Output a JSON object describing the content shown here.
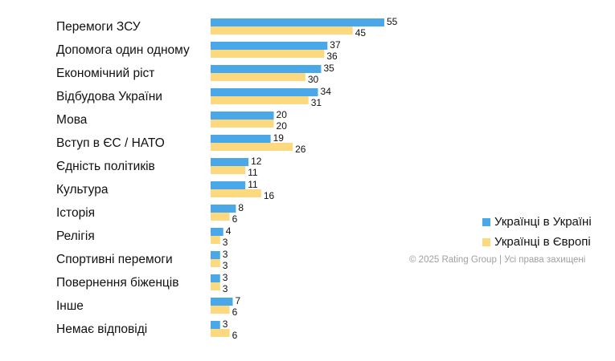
{
  "chart_data": {
    "type": "bar",
    "orientation": "horizontal",
    "title": "",
    "xlabel": "",
    "ylabel": "",
    "xlim": [
      0,
      55
    ],
    "grid": false,
    "legend_position": "right",
    "categories": [
      "Перемоги ЗСУ",
      "Допомога один одному",
      "Економічний ріст",
      "Відбудова України",
      "Мова",
      "Вступ в ЄС / НАТО",
      "Єдність політиків",
      "Культура",
      "Історія",
      "Релігія",
      "Спортивні перемоги",
      "Повернення біженців",
      "Інше",
      "Немає відповіді"
    ],
    "series": [
      {
        "name": "Українці в Україні",
        "color": "#4aa8e8",
        "values": [
          55,
          37,
          35,
          34,
          20,
          19,
          12,
          11,
          8,
          4,
          3,
          3,
          7,
          3
        ]
      },
      {
        "name": "Українці в Європі",
        "color": "#fcd87e",
        "values": [
          45,
          36,
          30,
          31,
          20,
          26,
          11,
          16,
          6,
          3,
          3,
          3,
          6,
          6
        ]
      }
    ]
  },
  "legend": {
    "items": [
      {
        "label": "Українці в Україні",
        "color": "#4aa8e8"
      },
      {
        "label": "Українці в Європі",
        "color": "#fcd87e"
      }
    ]
  },
  "footer": {
    "copyright": "© 2025 Rating Group | Усі права захищені"
  }
}
